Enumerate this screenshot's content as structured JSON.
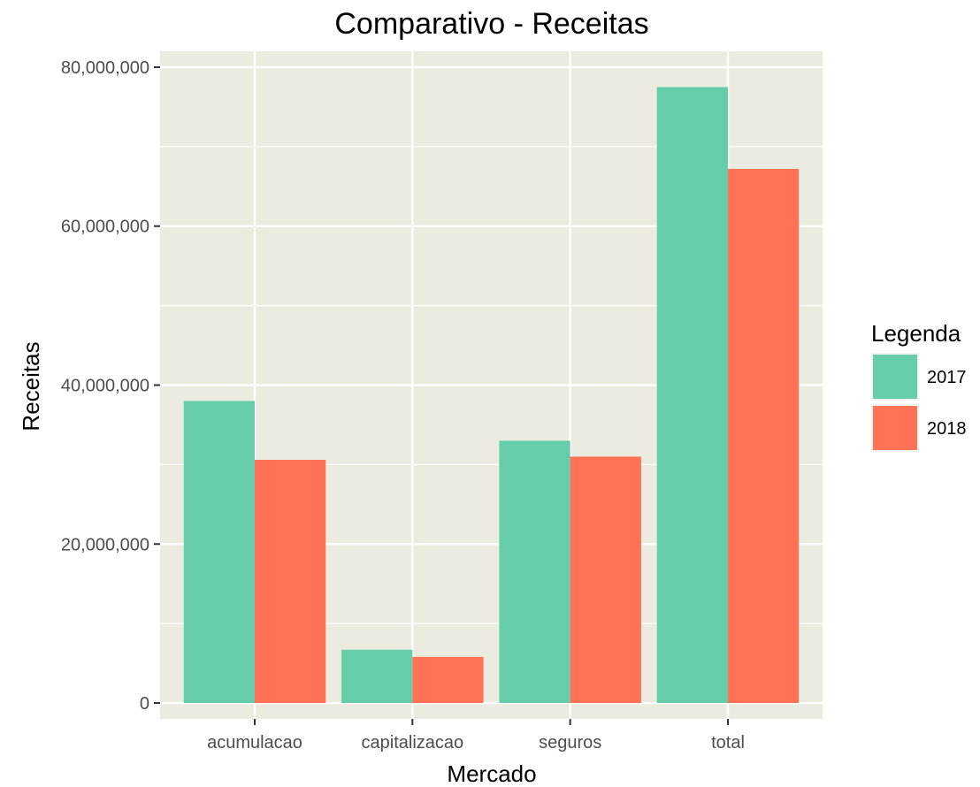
{
  "chart_data": {
    "type": "bar",
    "title": "Comparativo - Receitas",
    "xlabel": "Mercado",
    "ylabel": "Receitas",
    "categories": [
      "acumulacao",
      "capitalizacao",
      "seguros",
      "total"
    ],
    "series": [
      {
        "name": "2017",
        "color": "#66CDAA",
        "values": [
          38000000,
          6700000,
          33000000,
          77500000
        ]
      },
      {
        "name": "2018",
        "color": "#FF7256",
        "values": [
          30600000,
          5800000,
          31000000,
          67200000
        ]
      }
    ],
    "ylim": [
      -2000000,
      82000000
    ],
    "yticks": [
      0,
      20000000,
      40000000,
      60000000,
      80000000
    ],
    "ytick_labels": [
      "0",
      "20,000,000",
      "40,000,000",
      "60,000,000",
      "80,000,000"
    ],
    "legend": {
      "title": "Legenda",
      "position": "right"
    },
    "panel_background": "#EBEBDF",
    "grid": true
  }
}
